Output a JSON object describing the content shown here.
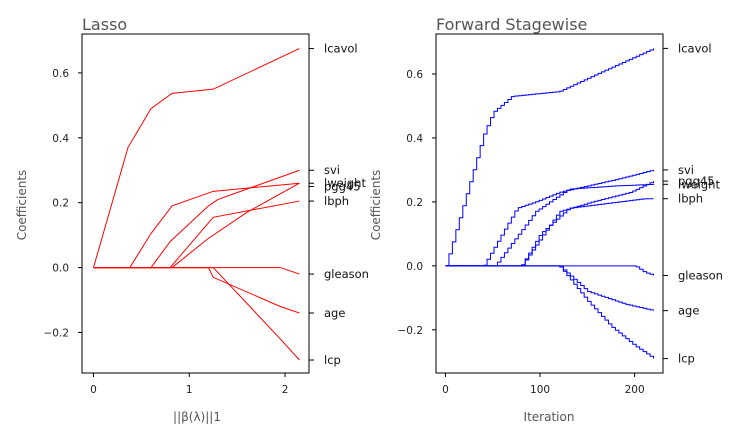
{
  "colors": {
    "lasso": "#ff0000",
    "stagewise": "#0000ff",
    "frame": "#000000"
  },
  "chart_data": [
    {
      "type": "line",
      "title": "Lasso",
      "xlabel": "||β(λ)||1",
      "ylabel": "Coefficients",
      "xlim": [
        -0.12,
        2.25
      ],
      "ylim": [
        -0.325,
        0.72
      ],
      "xticks": [
        0,
        1,
        2
      ],
      "xtick_labels": [
        "0",
        "1",
        "2"
      ],
      "yticks": [
        -0.2,
        0.0,
        0.2,
        0.4,
        0.6
      ],
      "ytick_labels": [
        "−0.2",
        "0.0",
        "0.2",
        "0.4",
        "0.6"
      ],
      "grid": false,
      "end_ticks": [
        {
          "label": "lcavol",
          "value": 0.675
        },
        {
          "label": "svi",
          "value": 0.3
        },
        {
          "label": "lweight",
          "value": 0.26
        },
        {
          "label": "pgg45",
          "value": 0.25
        },
        {
          "label": "lbph",
          "value": 0.205
        },
        {
          "label": "gleason",
          "value": -0.02
        },
        {
          "label": "age",
          "value": -0.14
        },
        {
          "label": "lcp",
          "value": -0.285
        }
      ],
      "series": [
        {
          "label": "lcavol",
          "points": [
            [
              0,
              0
            ],
            [
              0.36,
              0.37
            ],
            [
              0.6,
              0.49
            ],
            [
              0.82,
              0.537
            ],
            [
              1.25,
              0.55
            ],
            [
              2.15,
              0.675
            ]
          ]
        },
        {
          "label": "svi",
          "points": [
            [
              0,
              0
            ],
            [
              0.6,
              0
            ],
            [
              0.8,
              0.08
            ],
            [
              1.2,
              0.19
            ],
            [
              1.3,
              0.21
            ],
            [
              2.15,
              0.3
            ]
          ]
        },
        {
          "label": "lweight",
          "points": [
            [
              0,
              0
            ],
            [
              0.38,
              0
            ],
            [
              0.6,
              0.105
            ],
            [
              0.82,
              0.19
            ],
            [
              1.25,
              0.235
            ],
            [
              2.15,
              0.26
            ]
          ]
        },
        {
          "label": "pgg45",
          "points": [
            [
              0,
              0
            ],
            [
              0.82,
              0
            ],
            [
              1.2,
              0.09
            ],
            [
              1.6,
              0.17
            ],
            [
              2.15,
              0.26
            ]
          ]
        },
        {
          "label": "lbph",
          "points": [
            [
              0,
              0
            ],
            [
              0.8,
              0
            ],
            [
              1.25,
              0.155
            ],
            [
              2.15,
              0.205
            ]
          ]
        },
        {
          "label": "gleason",
          "points": [
            [
              0,
              0
            ],
            [
              1.95,
              0
            ],
            [
              2.15,
              -0.02
            ]
          ]
        },
        {
          "label": "age",
          "points": [
            [
              0,
              0
            ],
            [
              1.2,
              0
            ],
            [
              1.25,
              -0.03
            ],
            [
              1.95,
              -0.12
            ],
            [
              2.15,
              -0.14
            ]
          ]
        },
        {
          "label": "lcp",
          "points": [
            [
              0,
              0
            ],
            [
              1.25,
              0
            ],
            [
              1.95,
              -0.22
            ],
            [
              2.15,
              -0.285
            ]
          ]
        }
      ]
    },
    {
      "type": "line",
      "title": "Forward Stagewise",
      "xlabel": "Iteration",
      "ylabel": "Coefficients",
      "xlim": [
        -10,
        230
      ],
      "ylim": [
        -0.335,
        0.725
      ],
      "xticks": [
        0,
        100,
        200
      ],
      "xtick_labels": [
        "0",
        "100",
        "200"
      ],
      "yticks": [
        -0.2,
        0.0,
        0.2,
        0.4,
        0.6
      ],
      "ytick_labels": [
        "−0.2",
        "0.0",
        "0.2",
        "0.4",
        "0.6"
      ],
      "grid": false,
      "steps": true,
      "end_ticks": [
        {
          "label": "lcavol",
          "value": 0.68
        },
        {
          "label": "svi",
          "value": 0.3
        },
        {
          "label": "pgg45",
          "value": 0.265
        },
        {
          "label": "lweight",
          "value": 0.255
        },
        {
          "label": "lbph",
          "value": 0.21
        },
        {
          "label": "gleason",
          "value": -0.03
        },
        {
          "label": "age",
          "value": -0.14
        },
        {
          "label": "lcp",
          "value": -0.29
        }
      ],
      "series": [
        {
          "label": "lcavol",
          "points": [
            [
              0,
              0
            ],
            [
              40,
              0.41
            ],
            [
              50,
              0.48
            ],
            [
              70,
              0.53
            ],
            [
              120,
              0.545
            ],
            [
              160,
              0.6
            ],
            [
              220,
              0.68
            ]
          ]
        },
        {
          "label": "svi",
          "points": [
            [
              0,
              0
            ],
            [
              40,
              0
            ],
            [
              75,
              0.18
            ],
            [
              95,
              0.2
            ],
            [
              120,
              0.23
            ],
            [
              180,
              0.27
            ],
            [
              220,
              0.3
            ]
          ]
        },
        {
          "label": "pgg45",
          "points": [
            [
              0,
              0
            ],
            [
              80,
              0
            ],
            [
              120,
              0.17
            ],
            [
              155,
              0.2
            ],
            [
              195,
              0.23
            ],
            [
              220,
              0.265
            ]
          ]
        },
        {
          "label": "lweight",
          "points": [
            [
              0,
              0
            ],
            [
              52,
              0
            ],
            [
              95,
              0.17
            ],
            [
              130,
              0.24
            ],
            [
              180,
              0.25
            ],
            [
              220,
              0.255
            ]
          ]
        },
        {
          "label": "lbph",
          "points": [
            [
              0,
              0
            ],
            [
              80,
              0
            ],
            [
              100,
              0.1
            ],
            [
              130,
              0.18
            ],
            [
              210,
              0.21
            ],
            [
              220,
              0.21
            ]
          ]
        },
        {
          "label": "gleason",
          "points": [
            [
              0,
              0
            ],
            [
              200,
              0
            ],
            [
              210,
              -0.02
            ],
            [
              220,
              -0.03
            ]
          ]
        },
        {
          "label": "age",
          "points": [
            [
              0,
              0
            ],
            [
              120,
              0
            ],
            [
              150,
              -0.08
            ],
            [
              190,
              -0.12
            ],
            [
              220,
              -0.14
            ]
          ]
        },
        {
          "label": "lcp",
          "points": [
            [
              0,
              0
            ],
            [
              120,
              0
            ],
            [
              150,
              -0.11
            ],
            [
              175,
              -0.19
            ],
            [
              200,
              -0.25
            ],
            [
              220,
              -0.29
            ]
          ]
        }
      ]
    }
  ]
}
